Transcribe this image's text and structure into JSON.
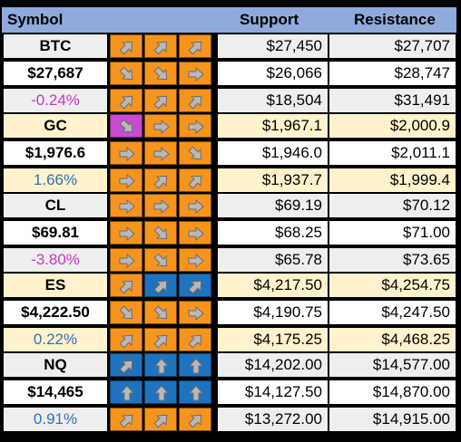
{
  "header": {
    "symbol": "Symbol",
    "support": "Support",
    "resistance": "Resistance"
  },
  "colors": {
    "header_bg": "#8eaadb",
    "orange": "#f7941d",
    "blue": "#1e73be",
    "magenta": "#c84bd1",
    "neg_pct": "#cc33cc",
    "pos_pct": "#2e75b6"
  },
  "groups": [
    {
      "symbol": "BTC",
      "price": "$27,687",
      "change": "-0.24%",
      "change_sign": "neg",
      "theme": "grey",
      "rows": [
        {
          "icons": [
            {
              "dir": "up-right",
              "color": "orange"
            },
            {
              "dir": "up-right",
              "color": "orange"
            },
            {
              "dir": "up-right",
              "color": "orange"
            }
          ],
          "support": "$27,450",
          "resistance": "$27,707"
        },
        {
          "icons": [
            {
              "dir": "down-right",
              "color": "orange"
            },
            {
              "dir": "down-right",
              "color": "orange"
            },
            {
              "dir": "right",
              "color": "orange"
            }
          ],
          "support": "$26,066",
          "resistance": "$28,747"
        },
        {
          "icons": [
            {
              "dir": "up-right",
              "color": "orange"
            },
            {
              "dir": "up-right",
              "color": "orange"
            },
            {
              "dir": "up-right",
              "color": "orange"
            }
          ],
          "support": "$18,504",
          "resistance": "$31,491"
        }
      ]
    },
    {
      "symbol": "GC",
      "price": "$1,976.6",
      "change": "1.66%",
      "change_sign": "pos",
      "theme": "cream",
      "rows": [
        {
          "icons": [
            {
              "dir": "down-right",
              "color": "magenta"
            },
            {
              "dir": "right",
              "color": "orange"
            },
            {
              "dir": "right",
              "color": "orange"
            }
          ],
          "support": "$1,967.1",
          "resistance": "$2,000.9"
        },
        {
          "icons": [
            {
              "dir": "right",
              "color": "orange"
            },
            {
              "dir": "right",
              "color": "orange"
            },
            {
              "dir": "down-right",
              "color": "orange"
            }
          ],
          "support": "$1,946.0",
          "resistance": "$2,011.1"
        },
        {
          "icons": [
            {
              "dir": "right",
              "color": "orange"
            },
            {
              "dir": "up-right",
              "color": "orange"
            },
            {
              "dir": "up-right",
              "color": "orange"
            }
          ],
          "support": "$1,937.7",
          "resistance": "$1,999.4"
        }
      ]
    },
    {
      "symbol": "CL",
      "price": "$69.81",
      "change": "-3.80%",
      "change_sign": "neg",
      "theme": "grey",
      "rows": [
        {
          "icons": [
            {
              "dir": "right",
              "color": "orange"
            },
            {
              "dir": "right",
              "color": "orange"
            },
            {
              "dir": "right",
              "color": "orange"
            }
          ],
          "support": "$69.19",
          "resistance": "$70.12"
        },
        {
          "icons": [
            {
              "dir": "right",
              "color": "orange"
            },
            {
              "dir": "down-right",
              "color": "orange"
            },
            {
              "dir": "right",
              "color": "orange"
            }
          ],
          "support": "$68.25",
          "resistance": "$71.00"
        },
        {
          "icons": [
            {
              "dir": "right",
              "color": "orange"
            },
            {
              "dir": "down-right",
              "color": "orange"
            },
            {
              "dir": "right",
              "color": "orange"
            }
          ],
          "support": "$65.78",
          "resistance": "$73.65"
        }
      ]
    },
    {
      "symbol": "ES",
      "price": "$4,222.50",
      "change": "0.22%",
      "change_sign": "pos",
      "theme": "cream",
      "rows": [
        {
          "icons": [
            {
              "dir": "up-right",
              "color": "orange"
            },
            {
              "dir": "up-right",
              "color": "blue"
            },
            {
              "dir": "up-right",
              "color": "blue"
            }
          ],
          "support": "$4,217.50",
          "resistance": "$4,254.75"
        },
        {
          "icons": [
            {
              "dir": "down-right",
              "color": "orange"
            },
            {
              "dir": "down-right",
              "color": "orange"
            },
            {
              "dir": "right",
              "color": "orange"
            }
          ],
          "support": "$4,190.75",
          "resistance": "$4,247.50"
        },
        {
          "icons": [
            {
              "dir": "up-right",
              "color": "orange"
            },
            {
              "dir": "up-right",
              "color": "orange"
            },
            {
              "dir": "up-right",
              "color": "orange"
            }
          ],
          "support": "$4,175.25",
          "resistance": "$4,468.25"
        }
      ]
    },
    {
      "symbol": "NQ",
      "price": "$14,465",
      "change": "0.91%",
      "change_sign": "pos",
      "theme": "grey",
      "rows": [
        {
          "icons": [
            {
              "dir": "up-right",
              "color": "blue"
            },
            {
              "dir": "up",
              "color": "blue"
            },
            {
              "dir": "up",
              "color": "blue"
            }
          ],
          "support": "$14,202.00",
          "resistance": "$14,577.00"
        },
        {
          "icons": [
            {
              "dir": "up",
              "color": "blue"
            },
            {
              "dir": "up",
              "color": "blue"
            },
            {
              "dir": "up",
              "color": "blue"
            }
          ],
          "support": "$14,127.50",
          "resistance": "$14,870.00"
        },
        {
          "icons": [
            {
              "dir": "up-right",
              "color": "orange"
            },
            {
              "dir": "up-right",
              "color": "orange"
            },
            {
              "dir": "up-right",
              "color": "orange"
            }
          ],
          "support": "$13,272.00",
          "resistance": "$14,915.00"
        }
      ]
    }
  ]
}
